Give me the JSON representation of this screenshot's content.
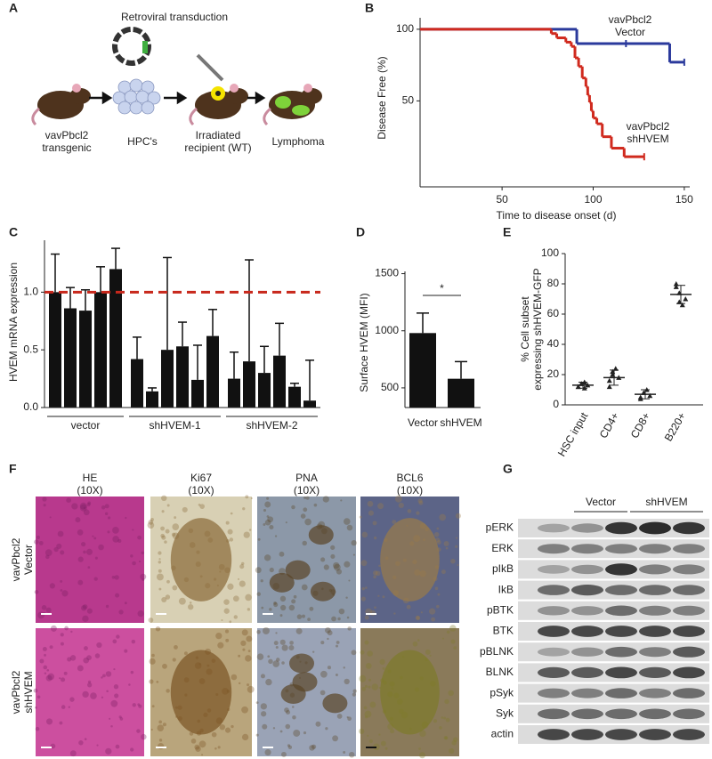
{
  "panel_labels": [
    "A",
    "B",
    "C",
    "D",
    "E",
    "F",
    "G"
  ],
  "diagram": {
    "title": "Retroviral transduction",
    "steps": [
      "vavPbcl2\ntransgenic",
      "HPC's",
      "Irradiated\nrecipient (WT)",
      "Lymphoma"
    ]
  },
  "chart_data": [
    {
      "type": "step",
      "xlabel": "Time to disease onset (d)",
      "ylabel": "Disease Free (%)",
      "xlim": [
        5,
        153
      ],
      "ylim": [
        -10,
        108
      ],
      "xticks": [
        50,
        100,
        150
      ],
      "yticks": [
        50,
        100
      ],
      "series": [
        {
          "name": "vavPbcl2\nVector",
          "color": "#2b3a9c",
          "x": [
            5,
            91,
            142,
            150
          ],
          "values": [
            100,
            90,
            77,
            77
          ],
          "censor_x": [
            118
          ]
        },
        {
          "name": "vavPbcl2\nshHVEM",
          "color": "#d02a1e",
          "x": [
            5,
            77,
            80,
            85,
            88,
            90,
            92,
            94,
            96,
            97,
            98,
            99,
            100,
            102,
            105,
            110,
            117,
            128
          ],
          "values": [
            100,
            97,
            94,
            91,
            88,
            80,
            74,
            66,
            60,
            54,
            49,
            43,
            38,
            34,
            25,
            17,
            11,
            11
          ]
        }
      ]
    },
    {
      "type": "grouped_bar_error",
      "ylabel": "HVEM mRNA expression",
      "ylim": [
        0,
        1.45
      ],
      "yticks": [
        {
          "value": 0,
          "label": "0.0"
        },
        {
          "value": 0.5,
          "label": "0.5"
        },
        {
          "value": 1,
          "label": "1.0"
        }
      ],
      "reference_line": {
        "value": 1,
        "color": "#c8281c"
      },
      "color": "#111111",
      "groups": [
        {
          "name": "vector",
          "values": [
            1.0,
            0.86,
            0.84,
            1.0,
            1.2
          ],
          "errors": [
            0.33,
            0.18,
            0.18,
            0.22,
            0.18
          ]
        },
        {
          "name": "shHVEM-1",
          "values": [
            0.42,
            0.14,
            0.5,
            0.53,
            0.24,
            0.62
          ],
          "errors": [
            0.19,
            0.03,
            0.8,
            0.21,
            0.3,
            0.23
          ]
        },
        {
          "name": "shHVEM-2",
          "values": [
            0.25,
            0.4,
            0.3,
            0.45,
            0.18,
            0.06
          ],
          "errors": [
            0.23,
            0.88,
            0.23,
            0.28,
            0.03,
            0.35
          ]
        }
      ]
    },
    {
      "type": "bar_error",
      "ylabel": "Surface HVEM (MFI)",
      "categories": [
        "Vector",
        "shHVEM"
      ],
      "values": [
        980,
        580
      ],
      "errors": [
        175,
        150
      ],
      "ylim": [
        328,
        1520
      ],
      "yticks": [
        500,
        1000,
        1500
      ],
      "annotation": "*",
      "color": "#111111"
    },
    {
      "type": "dot_mean",
      "ylabel": "% Cell subset\nexpressing shHVEM-GFP",
      "categories": [
        "HSC input",
        "CD4+",
        "CD8+",
        "B220+"
      ],
      "points": [
        [
          12,
          14,
          15,
          13,
          12,
          14,
          11
        ],
        [
          16,
          20,
          24,
          18,
          12,
          22
        ],
        [
          5,
          8,
          10,
          6,
          4
        ],
        [
          80,
          74,
          66,
          70,
          78,
          68
        ]
      ],
      "means": [
        13,
        18,
        7,
        73
      ],
      "sds": [
        2,
        5,
        3,
        6
      ],
      "ylim": [
        0,
        100
      ],
      "yticks": [
        0,
        20,
        40,
        60,
        80,
        100
      ],
      "color": "#222222"
    }
  ],
  "micrographs": {
    "columns": [
      "HE\n(10X)",
      "Ki67\n(10X)",
      "PNA\n(10X)",
      "BCL6\n(10X)"
    ],
    "rows": [
      "vavPbcl2\nVector",
      "vavPbcl2\nshHVEM"
    ]
  },
  "western_blot": {
    "groups": [
      "Vector",
      "shHVEM"
    ],
    "bands": [
      "pERK",
      "ERK",
      "pIkB",
      "IkB",
      "pBTK",
      "BTK",
      "pBLNK",
      "BLNK",
      "pSyk",
      "Syk",
      "actin"
    ]
  }
}
